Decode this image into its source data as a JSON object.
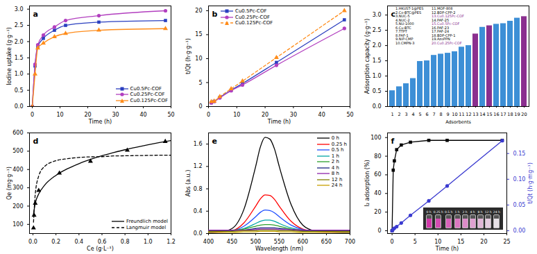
{
  "chart_data": [
    {
      "panel": "a",
      "type": "line",
      "x_label": "Time (h)",
      "y_label": "Iodine uptake (g·g⁻¹)",
      "x": [
        0,
        1,
        2,
        4,
        8,
        12,
        24,
        48
      ],
      "series": [
        {
          "name": "Cu0.5Pc-COF",
          "color": "#2a3fbf",
          "marker": "square",
          "line_style": "solid",
          "values": [
            0,
            1.25,
            1.85,
            2.1,
            2.35,
            2.5,
            2.6,
            2.65
          ]
        },
        {
          "name": "Cu0.25Pc-COF",
          "color": "#b23fbf",
          "marker": "circle",
          "line_style": "solid",
          "values": [
            0,
            1.3,
            1.9,
            2.2,
            2.45,
            2.65,
            2.8,
            2.95
          ]
        },
        {
          "name": "Cu0.125Pc-COF",
          "color": "#ff8c1a",
          "marker": "triangle",
          "line_style": "solid",
          "values": [
            0,
            1.0,
            1.8,
            1.95,
            2.15,
            2.25,
            2.35,
            2.4
          ]
        }
      ],
      "xlim": [
        -1,
        50
      ],
      "xticks": [
        0,
        10,
        20,
        30,
        40,
        50
      ],
      "ylim": [
        0,
        3.1
      ],
      "yticks": [
        {
          "value": 0,
          "label": "0.0"
        },
        {
          "value": 0.5,
          "label": "0.5"
        },
        {
          "value": 1,
          "label": "1.0"
        },
        {
          "value": 1.5,
          "label": "1.5"
        },
        {
          "value": 2,
          "label": "2.0"
        },
        {
          "value": 2.5,
          "label": "2.5"
        },
        {
          "value": 3,
          "label": "3.0"
        }
      ],
      "legend": "bottom-right"
    },
    {
      "panel": "b",
      "type": "line",
      "x_label": "Time (h)",
      "y_label": "t/Qt (h·g·g⁻¹)",
      "x": [
        1,
        2,
        4,
        8,
        12,
        24,
        48
      ],
      "series": [
        {
          "name": "Cu0.5Pc-COF",
          "color": "#2a3fbf",
          "marker": "square",
          "line_style": "solid",
          "values": [
            0.8,
            1.08,
            1.9,
            3.4,
            4.8,
            9.2,
            18.1
          ]
        },
        {
          "name": "Cu0.25Pc-COF",
          "color": "#b23fbf",
          "marker": "circle",
          "line_style": "solid",
          "values": [
            0.77,
            1.05,
            1.8,
            3.3,
            4.5,
            8.6,
            16.3
          ]
        },
        {
          "name": "Cu0.125Pc-COF",
          "color": "#ff8c1a",
          "marker": "triangle",
          "line_style": "dashed",
          "values": [
            1.0,
            1.1,
            2.05,
            3.7,
            5.3,
            10.2,
            20.0
          ]
        }
      ],
      "xlim": [
        0,
        50
      ],
      "xticks": [
        0,
        10,
        20,
        30,
        40,
        50
      ],
      "ylim": [
        0,
        21
      ],
      "yticks": [
        0,
        5,
        10,
        15,
        20
      ],
      "legend": "top-left"
    },
    {
      "panel": "c",
      "type": "bar",
      "x_label": "Adsorbents",
      "y_label": "Adsorption capacity (g·g⁻¹)",
      "categories": [
        "1",
        "2",
        "3",
        "4",
        "5",
        "6",
        "7",
        "8",
        "9",
        "10",
        "11",
        "12",
        "13",
        "14",
        "15",
        "16",
        "17",
        "18",
        "19",
        "20"
      ],
      "values": [
        0.52,
        0.65,
        0.75,
        0.92,
        1.48,
        1.5,
        1.68,
        1.72,
        1.75,
        1.8,
        1.95,
        2.0,
        2.38,
        2.6,
        2.65,
        2.7,
        2.72,
        2.8,
        2.9,
        2.95
      ],
      "colors": [
        "#3d8fd6",
        "#3d8fd6",
        "#3d8fd6",
        "#3d8fd6",
        "#3d8fd6",
        "#3d8fd6",
        "#3d8fd6",
        "#3d8fd6",
        "#3d8fd6",
        "#3d8fd6",
        "#3d8fd6",
        "#3d8fd6",
        "#8b2f8f",
        "#3d8fd6",
        "#8b2f8f",
        "#3d8fd6",
        "#3d8fd6",
        "#3d8fd6",
        "#3d8fd6",
        "#8b2f8f"
      ],
      "annotations": [
        "1.HKUST-1@PES",
        "2.Co-BTC@PES",
        "3.NUC-5",
        "4.NUC-2",
        "5.NU-1000",
        "6.Cu-BTC",
        "7.TTPT",
        "8.PAF-1",
        "9.NiP-CMP",
        "10.CMPN-3",
        "11.MOF-808",
        "12.BDP-CPP-2",
        "13.Cu0.125Pc-COF",
        "14.PAF-25",
        "15.Cu0.5Pc-COF",
        "16.PAF-23",
        "17.PAF-24",
        "18.BDP-CPP-1",
        "19.AzoPPN",
        "20.Cu0.25Pc-COF"
      ],
      "ylim": [
        0,
        3.3
      ],
      "yticks": [
        {
          "value": 0,
          "label": "0.0"
        },
        {
          "value": 0.5,
          "label": "0.5"
        },
        {
          "value": 1,
          "label": "1.0"
        },
        {
          "value": 1.5,
          "label": "1.5"
        },
        {
          "value": 2,
          "label": "2.0"
        },
        {
          "value": 2.5,
          "label": "2.5"
        },
        {
          "value": 3,
          "label": "3.0"
        }
      ]
    },
    {
      "panel": "d",
      "type": "scatter",
      "x_label": "Ce (g·L⁻¹)",
      "y_label": "Qe (mg·g⁻¹)",
      "series": [
        {
          "type": "scatter",
          "color": "#000000",
          "marker": "triangle",
          "x": [
            0.005,
            0.01,
            0.02,
            0.05,
            0.23,
            0.5,
            0.82,
            1.15
          ],
          "values": [
            80,
            150,
            215,
            285,
            380,
            445,
            505,
            553
          ]
        },
        {
          "name": "Freundlich model",
          "type": "line",
          "color": "#000000",
          "line_style": "solid",
          "x": [
            0.005,
            0.02,
            0.05,
            0.1,
            0.2,
            0.3,
            0.4,
            0.5,
            0.6,
            0.7,
            0.8,
            0.9,
            1.0,
            1.1,
            1.2
          ],
          "values": [
            156,
            215,
            266,
            313,
            368,
            404,
            432,
            455,
            475,
            492,
            508,
            522,
            535,
            547,
            558
          ]
        },
        {
          "name": "Langmuir model",
          "type": "line",
          "color": "#000000",
          "line_style": "dashed",
          "x": [
            0.005,
            0.02,
            0.05,
            0.1,
            0.2,
            0.3,
            0.4,
            0.5,
            0.6,
            0.7,
            0.8,
            0.9,
            1.0,
            1.1,
            1.2
          ],
          "values": [
            112,
            265,
            364,
            416,
            448,
            459,
            466,
            469,
            470,
            474,
            475,
            476,
            477,
            478,
            478
          ]
        }
      ],
      "xlim": [
        -0.03,
        1.2
      ],
      "xticks": [
        {
          "value": 0,
          "label": "0.0"
        },
        {
          "value": 0.2,
          "label": "0.2"
        },
        {
          "value": 0.4,
          "label": "0.4"
        },
        {
          "value": 0.6,
          "label": "0.6"
        },
        {
          "value": 0.8,
          "label": "0.8"
        },
        {
          "value": 1,
          "label": "1.0"
        },
        {
          "value": 1.2,
          "label": "1.2"
        }
      ],
      "ylim": [
        50,
        600
      ],
      "yticks": [
        100,
        200,
        300,
        400,
        500,
        600
      ],
      "legend": "bottom-right"
    },
    {
      "panel": "e",
      "type": "line",
      "x_label": "Wavelength (nm)",
      "y_label": "Abs (a.u.)",
      "x": [
        400,
        425,
        450,
        475,
        500,
        510,
        520,
        530,
        540,
        550,
        575,
        600,
        625,
        650,
        700
      ],
      "series": [
        {
          "name": "0 h",
          "color": "#000000",
          "values": [
            0.02,
            0.03,
            0.09,
            0.43,
            1.2,
            1.55,
            1.72,
            1.69,
            1.51,
            1.2,
            0.52,
            0.15,
            0.05,
            0.03,
            0.02
          ]
        },
        {
          "name": "0.25 h",
          "color": "#ff0000",
          "values": [
            0.03,
            0.03,
            0.05,
            0.19,
            0.49,
            0.62,
            0.69,
            0.68,
            0.61,
            0.49,
            0.22,
            0.08,
            0.04,
            0.03,
            0.03
          ]
        },
        {
          "name": "0.5 h",
          "color": "#1f4fff",
          "values": [
            0.03,
            0.04,
            0.05,
            0.13,
            0.3,
            0.38,
            0.42,
            0.41,
            0.37,
            0.3,
            0.15,
            0.07,
            0.04,
            0.04,
            0.03
          ]
        },
        {
          "name": "1 h",
          "color": "#00a6a6",
          "values": [
            0.04,
            0.04,
            0.05,
            0.09,
            0.18,
            0.22,
            0.24,
            0.24,
            0.22,
            0.18,
            0.1,
            0.06,
            0.05,
            0.04,
            0.04
          ]
        },
        {
          "name": "2 h",
          "color": "#2ca02c",
          "values": [
            0.05,
            0.05,
            0.06,
            0.08,
            0.13,
            0.15,
            0.16,
            0.16,
            0.15,
            0.13,
            0.08,
            0.06,
            0.05,
            0.05,
            0.05
          ]
        },
        {
          "name": "4 h",
          "color": "#1a237e",
          "values": [
            0.05,
            0.05,
            0.05,
            0.06,
            0.09,
            0.1,
            0.1,
            0.1,
            0.1,
            0.09,
            0.07,
            0.05,
            0.05,
            0.05,
            0.05
          ]
        },
        {
          "name": "8 h",
          "color": "#8e24aa",
          "values": [
            0.06,
            0.06,
            0.06,
            0.06,
            0.07,
            0.08,
            0.08,
            0.08,
            0.08,
            0.07,
            0.07,
            0.06,
            0.06,
            0.06,
            0.06
          ]
        },
        {
          "name": "12 h",
          "color": "#808000",
          "values": [
            0.04,
            0.04,
            0.04,
            0.05,
            0.05,
            0.06,
            0.06,
            0.06,
            0.06,
            0.05,
            0.05,
            0.04,
            0.04,
            0.04,
            0.04
          ]
        },
        {
          "name": "24 h",
          "color": "#c8a000",
          "values": [
            0.02,
            0.02,
            0.02,
            0.03,
            0.03,
            0.04,
            0.04,
            0.04,
            0.04,
            0.03,
            0.03,
            0.02,
            0.02,
            0.02,
            0.02
          ]
        }
      ],
      "xlim": [
        400,
        700
      ],
      "xticks": [
        400,
        450,
        500,
        550,
        600,
        650,
        700
      ],
      "ylim": [
        0,
        1.8
      ],
      "yticks": [
        {
          "value": 0,
          "label": "0.0"
        },
        {
          "value": 0.4,
          "label": "0.4"
        },
        {
          "value": 0.8,
          "label": "0.8"
        },
        {
          "value": 1.2,
          "label": "1.2"
        },
        {
          "value": 1.6,
          "label": "1.6"
        }
      ],
      "legend": "top-right"
    },
    {
      "panel": "f",
      "type": "line",
      "x_label": "Time (h)",
      "y_label": "I₂ adsorption (%)",
      "y2_label": "t/Qt (h·g·mg⁻¹)",
      "x": [
        0,
        0.25,
        0.5,
        1,
        2,
        4,
        8,
        12,
        24
      ],
      "series": [
        {
          "color": "#000000",
          "marker": "square",
          "line_style": "solid",
          "values": [
            0,
            65,
            75,
            87,
            92,
            95,
            97,
            97,
            97
          ]
        },
        {
          "color": "#3a3ad0",
          "marker": "circle",
          "line_style": "solid",
          "axis": "y2",
          "values": [
            0,
            0.003,
            0.005,
            0.008,
            0.015,
            0.03,
            0.058,
            0.087,
            0.175
          ]
        }
      ],
      "xlim": [
        -1,
        25
      ],
      "xticks": [
        0,
        5,
        10,
        15,
        20,
        25
      ],
      "ylim": [
        -3,
        105
      ],
      "yticks": [
        0,
        20,
        40,
        60,
        80,
        100
      ],
      "y2lim": [
        -0.0054,
        0.19
      ],
      "y2ticks": [
        {
          "value": 0,
          "label": "0.00"
        },
        {
          "value": 0.05,
          "label": "0.05"
        },
        {
          "value": 0.1,
          "label": "0.10"
        },
        {
          "value": 0.15,
          "label": "0.15"
        }
      ],
      "inset_labels": [
        "0 h",
        "0.25 h",
        "0.5 h",
        "1 h",
        "2 h",
        "4 h",
        "8 h",
        "12 h",
        "24 h"
      ]
    }
  ]
}
